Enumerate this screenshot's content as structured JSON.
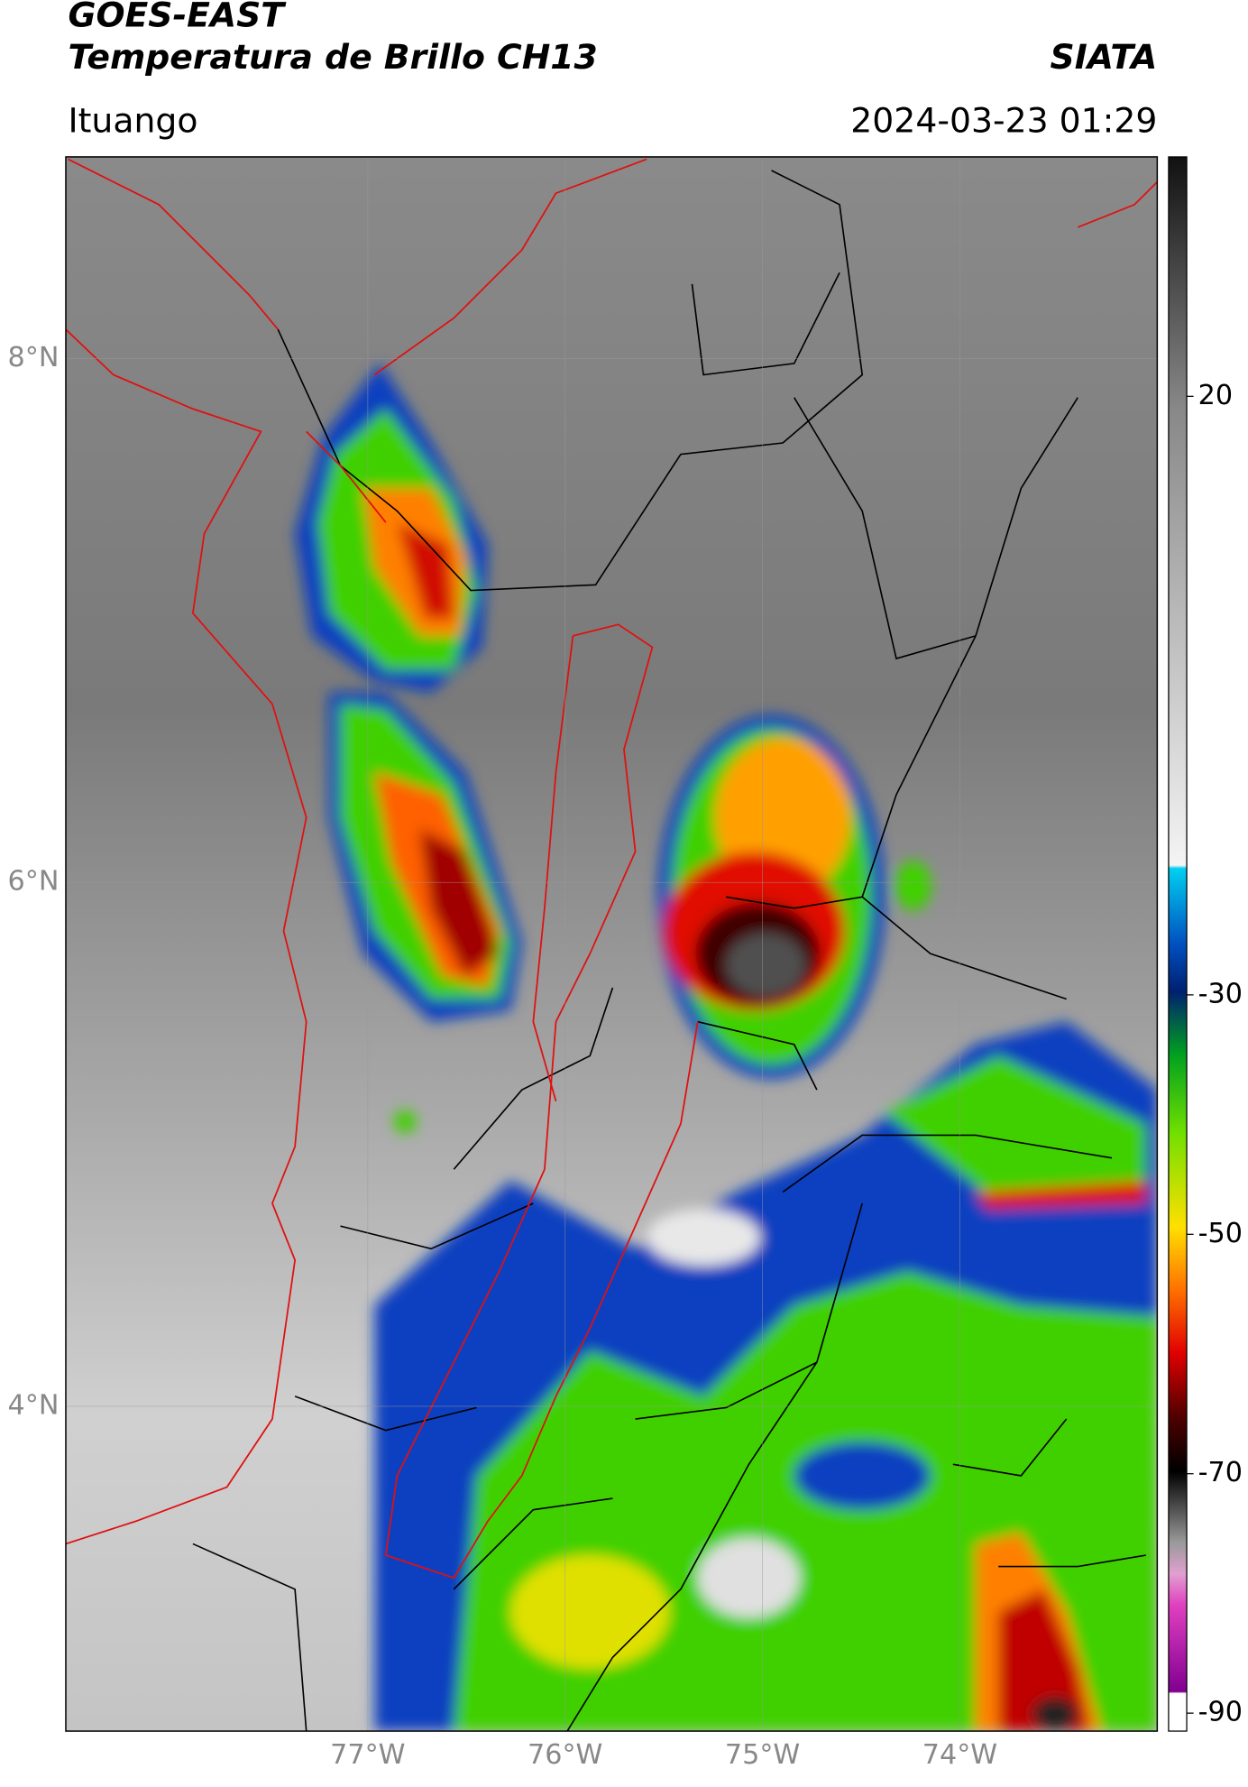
{
  "header": {
    "title": "GOES-EAST",
    "subtitle": "Temperatura de Brillo CH13",
    "source": "SIATA",
    "location": "Ituango",
    "datetime": "2024-03-23 01:29"
  },
  "map": {
    "xlim": [
      -78.53,
      -73.0
    ],
    "ylim": [
      2.76,
      8.77
    ],
    "xticks": [
      {
        "value": -77,
        "label": "77°W"
      },
      {
        "value": -76,
        "label": "76°W"
      },
      {
        "value": -75,
        "label": "75°W"
      },
      {
        "value": -74,
        "label": "74°W"
      }
    ],
    "yticks": [
      {
        "value": 8,
        "label": "8°N"
      },
      {
        "value": 6,
        "label": "6°N"
      },
      {
        "value": 4,
        "label": "4°N"
      }
    ],
    "grid": true
  },
  "colorbar": {
    "lim": [
      -91.5,
      40
    ],
    "ticks": [
      20,
      -30,
      -50,
      -70,
      -90
    ]
  }
}
